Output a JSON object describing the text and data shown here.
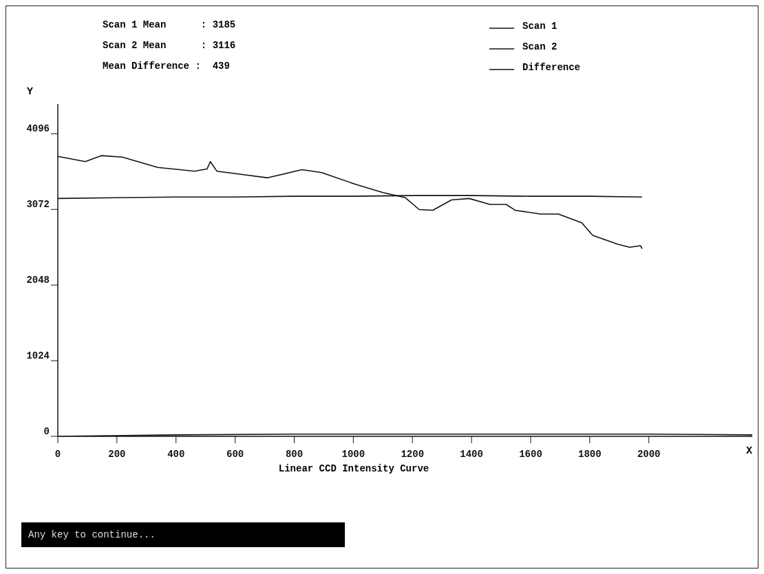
{
  "chart_data": {
    "type": "line",
    "xlabel": "Linear CCD Intensity Curve",
    "ylabel": "Y",
    "annotations": [
      "Scan 1 Mean      : 3185",
      "Scan 2 Mean      : 3116",
      "Mean Difference :  439",
      "X",
      "Any key to continue..."
    ],
    "xlim": [
      0,
      2350
    ],
    "xticks": [
      0,
      200,
      400,
      600,
      800,
      1000,
      1200,
      1400,
      1600,
      1800,
      2000
    ],
    "ylim": [
      0,
      4500
    ],
    "yticks": [
      0,
      1024,
      2048,
      3072,
      4096
    ],
    "grid": false,
    "legend": "top right",
    "marker": "none",
    "series": [
      {
        "name": "Scan 1",
        "color": "#111111",
        "x": [
          0,
          93,
          147,
          218,
          338,
          462,
          505,
          516,
          538,
          710,
          826,
          893,
          1009,
          1100,
          1176,
          1223,
          1269,
          1332,
          1392,
          1462,
          1517,
          1548,
          1633,
          1694,
          1773,
          1810,
          1896,
          1935,
          1972,
          1977
        ],
        "values": [
          3790,
          3720,
          3800,
          3780,
          3640,
          3590,
          3620,
          3720,
          3590,
          3500,
          3610,
          3570,
          3410,
          3300,
          3230,
          3070,
          3060,
          3200,
          3220,
          3140,
          3140,
          3060,
          3010,
          3010,
          2890,
          2720,
          2600,
          2560,
          2580,
          2540
        ]
      },
      {
        "name": "Scan 2",
        "color": "#111111",
        "x": [
          0,
          200,
          400,
          600,
          800,
          1000,
          1200,
          1400,
          1600,
          1800,
          1977
        ],
        "values": [
          3220,
          3230,
          3240,
          3240,
          3250,
          3250,
          3260,
          3260,
          3250,
          3250,
          3240
        ]
      },
      {
        "name": "Difference",
        "color": "#111111",
        "x": [
          0,
          400,
          800,
          1200,
          1600,
          2000,
          2350
        ],
        "values": [
          0,
          20,
          30,
          30,
          30,
          30,
          20
        ]
      }
    ]
  }
}
